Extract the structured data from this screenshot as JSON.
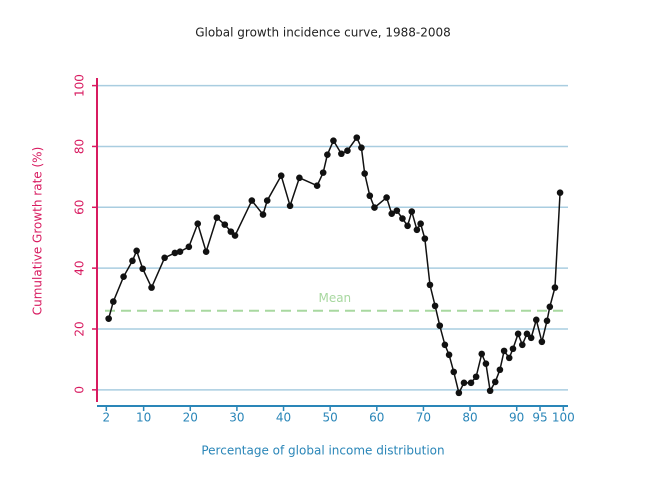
{
  "chart_data": {
    "type": "line",
    "title": "Global growth incidence curve, 1988-2008",
    "x_label": "Percentage of global income distribution",
    "y_label": "Cumulative Growth rate (%)",
    "x": [
      2.5,
      3.5,
      5.7,
      7.6,
      8.5,
      9.8,
      11.7,
      14.5,
      16.7,
      17.8,
      19.7,
      21.6,
      23.4,
      25.7,
      27.4,
      28.7,
      29.6,
      33.2,
      35.6,
      36.5,
      39.5,
      41.4,
      43.4,
      47.2,
      48.5,
      49.4,
      50.7,
      52.4,
      53.7,
      55.7,
      56.7,
      57.4,
      58.5,
      59.5,
      62.1,
      63.2,
      64.3,
      65.5,
      66.6,
      67.5,
      68.6,
      69.4,
      70.3,
      71.4,
      72.5,
      73.5,
      74.6,
      75.5,
      76.5,
      77.6,
      78.7,
      80.2,
      81.3,
      82.5,
      83.4,
      84.3,
      85.4,
      86.4,
      87.3,
      88.4,
      89.2,
      90.3,
      91.2,
      92.2,
      93.1,
      94.2,
      95.4,
      96.5,
      97.1,
      98.2,
      99.3
    ],
    "series": [
      {
        "name": "Cumulative growth",
        "color": "#111111",
        "values": [
          23.4,
          29,
          37.2,
          42.4,
          45.7,
          39.8,
          33.6,
          43.4,
          45,
          45.4,
          47,
          54.6,
          45.4,
          56.6,
          54.3,
          52,
          50.7,
          62.2,
          57.6,
          62.2,
          70.4,
          60.5,
          69.7,
          67.1,
          71.4,
          77.3,
          81.9,
          77.6,
          78.6,
          82.9,
          79.6,
          71.1,
          63.8,
          59.9,
          63.2,
          57.9,
          58.9,
          56.3,
          53.9,
          58.6,
          52.6,
          54.6,
          49.7,
          34.5,
          27.6,
          21.1,
          14.8,
          11.5,
          5.9,
          -1,
          2.3,
          2.3,
          4.3,
          11.8,
          8.6,
          -0.3,
          2.6,
          6.6,
          12.8,
          10.5,
          13.5,
          18.4,
          14.8,
          18.4,
          17.1,
          23,
          15.8,
          22.7,
          27.3,
          33.6,
          64.8
        ]
      }
    ],
    "mean_line": {
      "label": "Mean",
      "value": 26,
      "color": "#a8d8a0"
    },
    "xlim": [
      0,
      101
    ],
    "ylim": [
      -4,
      102.5
    ],
    "xticks": [
      2,
      10,
      20,
      30,
      40,
      50,
      60,
      70,
      80,
      90,
      95,
      100
    ],
    "yticks": [
      0,
      20,
      40,
      60,
      80,
      100
    ],
    "grid": true,
    "grid_color": "#a9cde0",
    "x_axis_color": "#2a86b8",
    "y_axis_color": "#d81b60"
  }
}
